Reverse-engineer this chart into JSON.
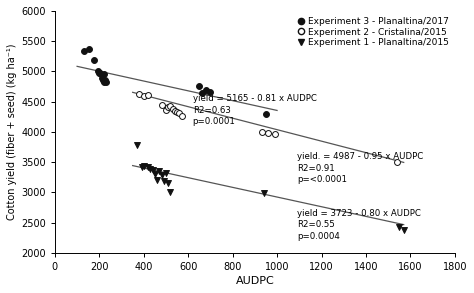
{
  "title": "",
  "xlabel": "AUDPC",
  "ylabel": "Cotton yield (fiber + seed) (kg ha⁻¹)",
  "xlim": [
    0,
    1800
  ],
  "ylim": [
    2000,
    6000
  ],
  "xticks": [
    0,
    200,
    400,
    600,
    800,
    1000,
    1200,
    1400,
    1600,
    1800
  ],
  "yticks": [
    2000,
    2500,
    3000,
    3500,
    4000,
    4500,
    5000,
    5500,
    6000
  ],
  "exp3_x": [
    130,
    155,
    175,
    195,
    200,
    205,
    210,
    215,
    220,
    220,
    225,
    230,
    650,
    660,
    680,
    700,
    950
  ],
  "exp3_y": [
    5330,
    5370,
    5190,
    5000,
    4970,
    4980,
    4890,
    4850,
    4960,
    4830,
    4860,
    4820,
    4760,
    4650,
    4700,
    4660,
    4300
  ],
  "exp2_x": [
    380,
    400,
    420,
    480,
    500,
    510,
    520,
    530,
    540,
    550,
    560,
    570,
    930,
    960,
    990,
    1540
  ],
  "exp2_y": [
    4620,
    4590,
    4610,
    4440,
    4360,
    4420,
    4430,
    4380,
    4350,
    4330,
    4310,
    4270,
    4000,
    3980,
    3960,
    3500
  ],
  "exp1_x": [
    370,
    390,
    400,
    420,
    430,
    440,
    450,
    460,
    470,
    480,
    490,
    500,
    510,
    520,
    940,
    1550,
    1570
  ],
  "exp1_y": [
    3790,
    3420,
    3430,
    3420,
    3380,
    3370,
    3310,
    3200,
    3350,
    3290,
    3180,
    3320,
    3160,
    3010,
    2990,
    2420,
    2370
  ],
  "reg3_intercept": 5165,
  "reg3_slope": -0.81,
  "reg3_label": "yield = 5165 - 0.81 x AUDPC\nR2=0.63\np=0.0001",
  "reg2_intercept": 4987,
  "reg2_slope": -0.95,
  "reg2_label": "yield. = 4987 - 0.95 x AUDPC\nR2=0.91\np=<0.0001",
  "reg1_intercept": 3723,
  "reg1_slope": -0.8,
  "reg1_label": "yield = 3723 - 0.80 x AUDPC\nR2=0.55\np=0.0004",
  "ann3_x": 620,
  "ann3_y": 4620,
  "ann2_x": 1090,
  "ann2_y": 3660,
  "ann1_x": 1090,
  "ann1_y": 2720,
  "legend_labels": [
    "Experiment 3 - Planaltina/2017",
    "Experiment 2 - Cristalina/2015",
    "Experiment 1 - Planaltina/2015"
  ],
  "line_color": "#555555",
  "marker_color": "#111111",
  "background_color": "#ffffff",
  "fontsize": 7,
  "annotation_fontsize": 6.2
}
